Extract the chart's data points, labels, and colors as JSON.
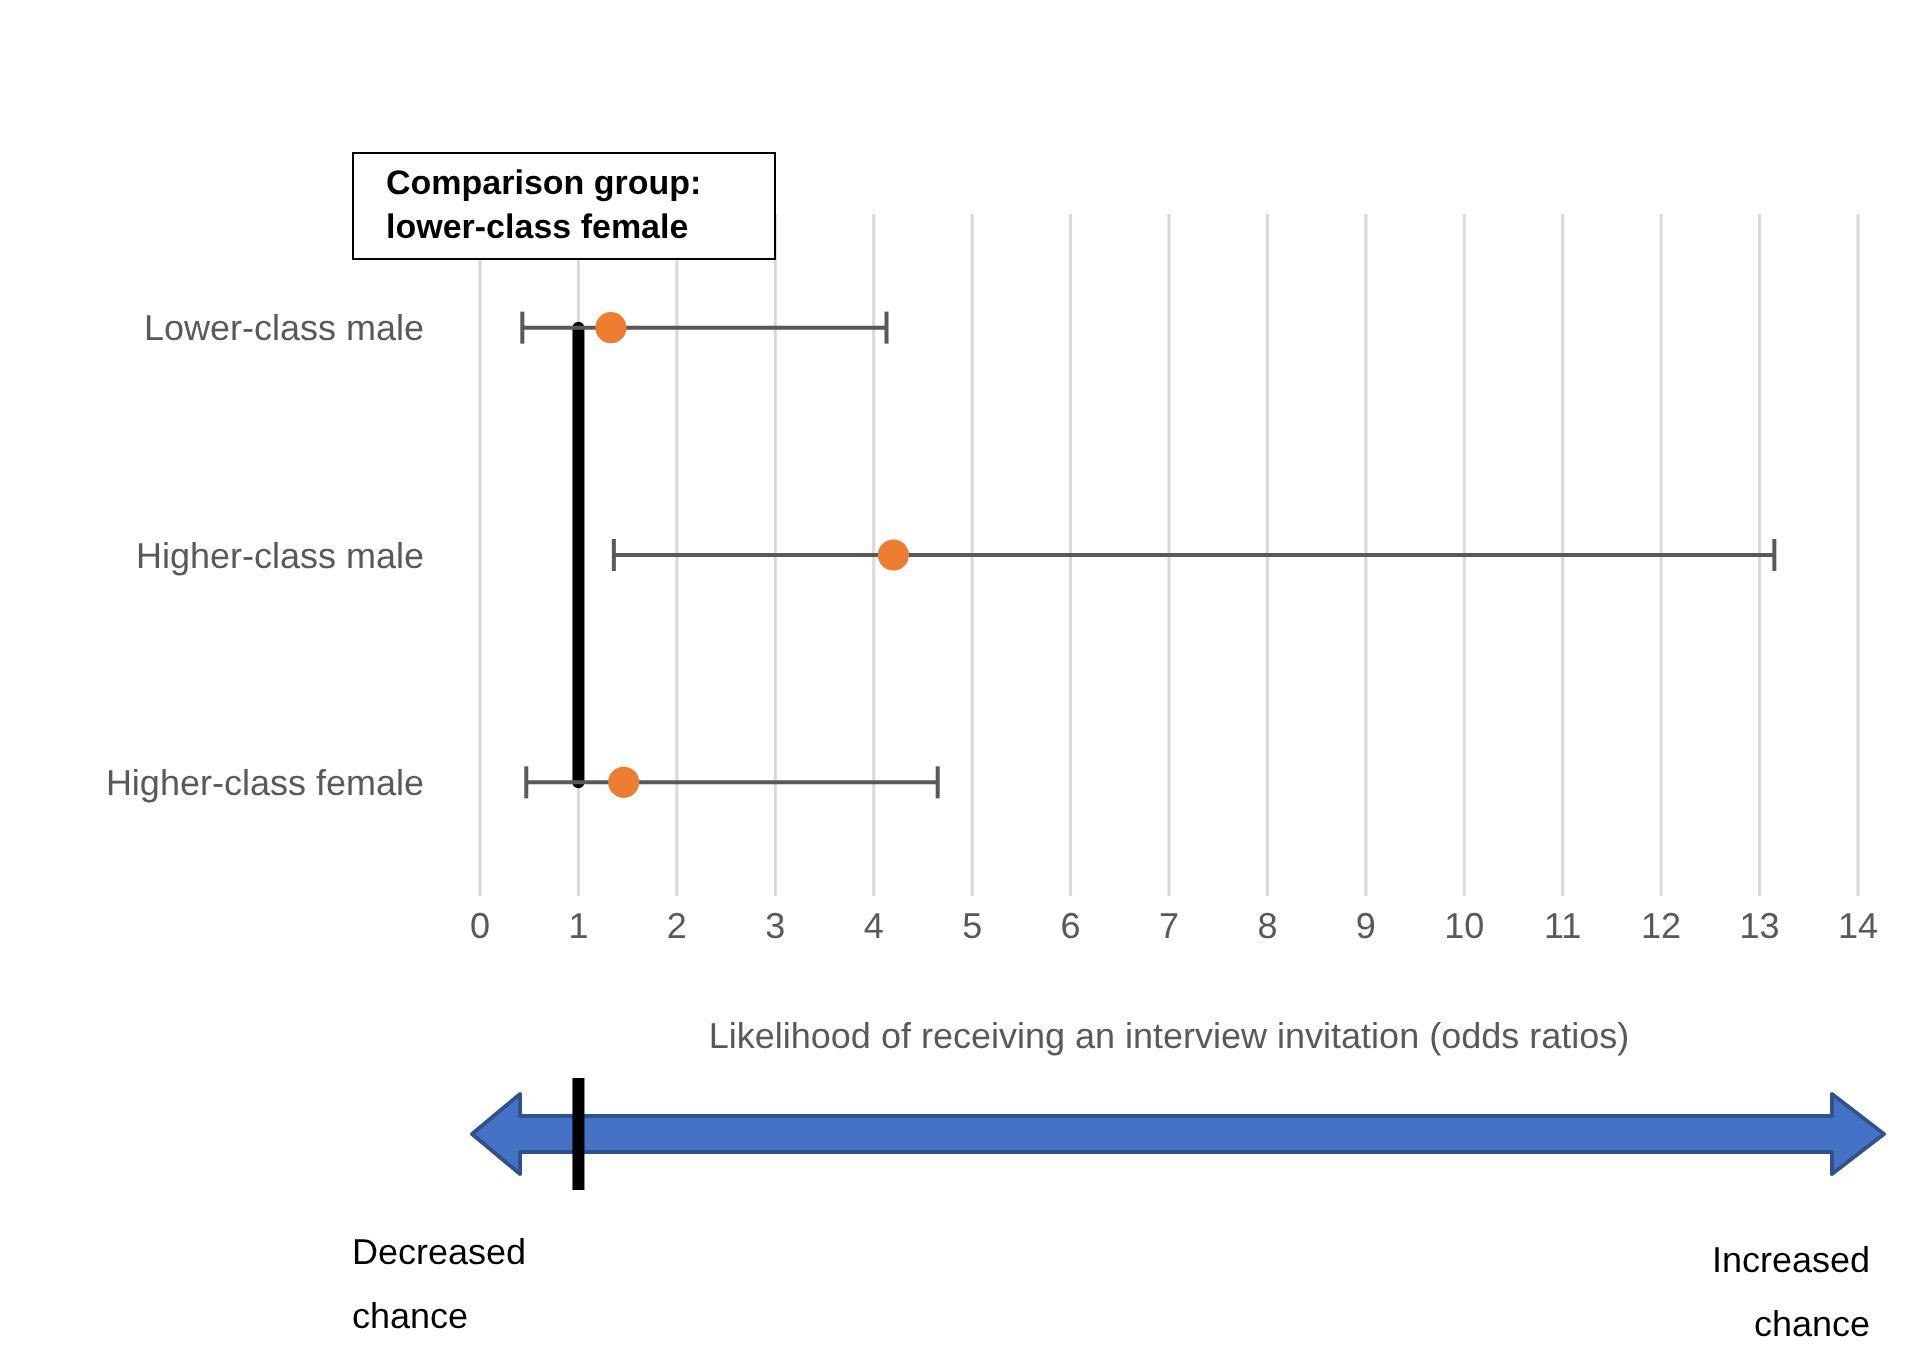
{
  "chart_data": {
    "type": "scatter",
    "orientation": "horizontal",
    "xlabel": "Likelihood of receiving an interview invitation (odds ratios)",
    "categories": [
      "Lower-class male",
      "Higher-class male",
      "Higher-class female"
    ],
    "series": [
      {
        "color": "#ed7d31",
        "values": [
          1.33,
          4.2,
          1.46
        ],
        "errors": [
          [
            0.43,
            4.13
          ],
          [
            1.36,
            13.15
          ],
          [
            0.47,
            4.65
          ]
        ]
      }
    ],
    "xlim": [
      0,
      14
    ],
    "xticks": [
      0,
      1,
      2,
      3,
      4,
      5,
      6,
      7,
      8,
      9,
      10,
      11,
      12,
      13,
      14
    ],
    "grid": "x",
    "marker": "circle",
    "ref_lines": [
      {
        "axis": "x",
        "value": 1,
        "color": "#000000"
      }
    ],
    "annotations": [
      "Comparison group: lower-class female",
      "Decreased chance",
      "Increased chance"
    ]
  }
}
